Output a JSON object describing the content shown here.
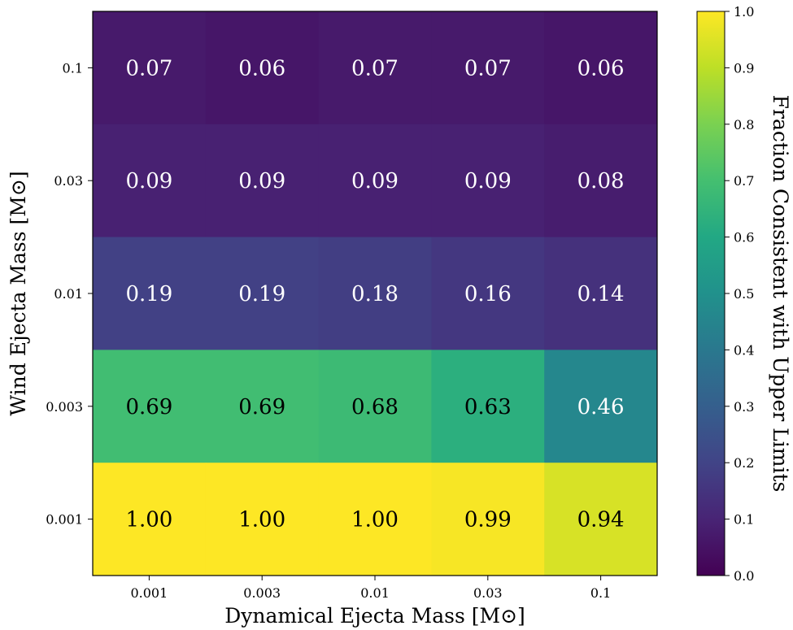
{
  "chart_data": {
    "type": "heatmap",
    "xlabel": "Dynamical Ejecta Mass [M⊙]",
    "ylabel": "Wind Ejecta Mass [M⊙]",
    "x_categories": [
      "0.001",
      "0.003",
      "0.01",
      "0.03",
      "0.1"
    ],
    "y_categories": [
      "0.1",
      "0.03",
      "0.01",
      "0.003",
      "0.001"
    ],
    "values": [
      [
        0.07,
        0.06,
        0.07,
        0.07,
        0.06
      ],
      [
        0.09,
        0.09,
        0.09,
        0.09,
        0.08
      ],
      [
        0.19,
        0.19,
        0.18,
        0.16,
        0.14
      ],
      [
        0.69,
        0.69,
        0.68,
        0.63,
        0.46
      ],
      [
        1.0,
        1.0,
        1.0,
        0.99,
        0.94
      ]
    ],
    "cell_labels": [
      [
        "0.07",
        "0.06",
        "0.07",
        "0.07",
        "0.06"
      ],
      [
        "0.09",
        "0.09",
        "0.09",
        "0.09",
        "0.08"
      ],
      [
        "0.19",
        "0.19",
        "0.18",
        "0.16",
        "0.14"
      ],
      [
        "0.69",
        "0.69",
        "0.68",
        "0.63",
        "0.46"
      ],
      [
        "1.00",
        "1.00",
        "1.00",
        "0.99",
        "0.94"
      ]
    ],
    "colorbar": {
      "label": "Fraction Consistent with Upper Limits",
      "range": [
        0.0,
        1.0
      ],
      "ticks": [
        "0.0",
        "0.1",
        "0.2",
        "0.3",
        "0.4",
        "0.5",
        "0.6",
        "0.7",
        "0.8",
        "0.9",
        "1.0"
      ],
      "colormap": "viridis"
    }
  }
}
